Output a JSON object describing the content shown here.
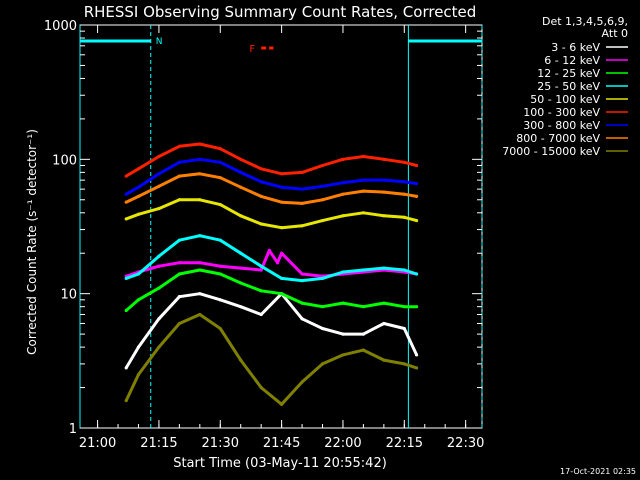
{
  "chart_data": {
    "type": "line",
    "title": "RHESSI Observing Summary Count Rates, Corrected",
    "xlabel": "Start Time (03-May-11 20:55:42)",
    "ylabel": "Corrected Count Rate (s⁻¹ detector⁻¹)",
    "y_scale": "log",
    "ylim": [
      1,
      1000
    ],
    "xlim_minutes": [
      "20:55:42",
      "22:34:00"
    ],
    "x_ticks": [
      "21:00",
      "21:15",
      "21:30",
      "21:45",
      "22:00",
      "22:15",
      "22:30"
    ],
    "y_ticks": [
      "1",
      "10",
      "100",
      "1000"
    ],
    "legend_title": [
      "Det 1,3,4,5,6,9,",
      "Att 0"
    ],
    "legend_position": "right",
    "footer": "17-Oct-2021 02:35",
    "grid": false,
    "flag_labels": {
      "night": "N",
      "flare": "F"
    },
    "night_intervals": [
      [
        "20:55:42",
        "21:13:00"
      ],
      [
        "22:16:00",
        "22:34:00"
      ]
    ],
    "flare_interval": [
      "21:40:00",
      "21:43:00"
    ],
    "series": [
      {
        "name": "3 - 6 keV",
        "color": "#ffffff",
        "x": [
          "21:07",
          "21:10",
          "21:15",
          "21:20",
          "21:25",
          "21:30",
          "21:35",
          "21:40",
          "21:45",
          "21:50",
          "21:55",
          "22:00",
          "22:05",
          "22:10",
          "22:15",
          "22:18"
        ],
        "values": [
          2.8,
          4.0,
          6.5,
          9.5,
          10.0,
          9.0,
          8.0,
          7.0,
          10.0,
          6.5,
          5.5,
          5.0,
          5.0,
          6.0,
          5.5,
          3.5
        ]
      },
      {
        "name": "6 - 12 keV",
        "color": "#ff00ff",
        "x": [
          "21:07",
          "21:10",
          "21:15",
          "21:20",
          "21:25",
          "21:30",
          "21:35",
          "21:40",
          "21:42",
          "21:44",
          "21:45",
          "21:50",
          "21:55",
          "22:00",
          "22:05",
          "22:10",
          "22:15",
          "22:18"
        ],
        "values": [
          13.5,
          14.5,
          16.0,
          17.0,
          17.0,
          16.0,
          15.5,
          15.0,
          21.0,
          17.0,
          20.0,
          14.0,
          13.5,
          14.0,
          14.5,
          15.0,
          14.5,
          14.0
        ]
      },
      {
        "name": "12 - 25 keV",
        "color": "#00ff00",
        "x": [
          "21:07",
          "21:10",
          "21:15",
          "21:20",
          "21:25",
          "21:30",
          "21:35",
          "21:40",
          "21:45",
          "21:50",
          "21:55",
          "22:00",
          "22:05",
          "22:10",
          "22:15",
          "22:18"
        ],
        "values": [
          7.5,
          9.0,
          11.0,
          14.0,
          15.0,
          14.0,
          12.0,
          10.5,
          10.0,
          8.5,
          8.0,
          8.5,
          8.0,
          8.5,
          8.0,
          8.0
        ]
      },
      {
        "name": "25 - 50 keV",
        "color": "#00ffff",
        "x": [
          "21:07",
          "21:10",
          "21:15",
          "21:20",
          "21:25",
          "21:30",
          "21:35",
          "21:40",
          "21:45",
          "21:50",
          "21:55",
          "22:00",
          "22:05",
          "22:10",
          "22:15",
          "22:18"
        ],
        "values": [
          13.0,
          14.0,
          19.0,
          25.0,
          27.0,
          25.0,
          20.0,
          16.0,
          13.0,
          12.5,
          13.0,
          14.5,
          15.0,
          15.5,
          15.0,
          14.0
        ]
      },
      {
        "name": "50 - 100 keV",
        "color": "#e6e600",
        "x": [
          "21:07",
          "21:10",
          "21:15",
          "21:20",
          "21:25",
          "21:30",
          "21:35",
          "21:40",
          "21:45",
          "21:50",
          "21:55",
          "22:00",
          "22:05",
          "22:10",
          "22:15",
          "22:18"
        ],
        "values": [
          36.0,
          39.0,
          43.0,
          50.0,
          50.0,
          46.0,
          38.0,
          33.0,
          31.0,
          32.0,
          35.0,
          38.0,
          40.0,
          38.0,
          37.0,
          35.0
        ]
      },
      {
        "name": "100 - 300 keV",
        "color": "#ff2000",
        "x": [
          "21:07",
          "21:10",
          "21:15",
          "21:20",
          "21:25",
          "21:30",
          "21:35",
          "21:40",
          "21:45",
          "21:50",
          "21:55",
          "22:00",
          "22:05",
          "22:10",
          "22:15",
          "22:18"
        ],
        "values": [
          75.0,
          85.0,
          105.0,
          125.0,
          130.0,
          120.0,
          100.0,
          85.0,
          78.0,
          80.0,
          90.0,
          100.0,
          105.0,
          100.0,
          95.0,
          90.0
        ]
      },
      {
        "name": "300 - 800 keV",
        "color": "#0000ff",
        "x": [
          "21:07",
          "21:10",
          "21:15",
          "21:20",
          "21:25",
          "21:30",
          "21:35",
          "21:40",
          "21:45",
          "21:50",
          "21:55",
          "22:00",
          "22:05",
          "22:10",
          "22:15",
          "22:18"
        ],
        "values": [
          55.0,
          62.0,
          78.0,
          95.0,
          100.0,
          95.0,
          80.0,
          68.0,
          62.0,
          60.0,
          63.0,
          67.0,
          70.0,
          70.0,
          68.0,
          66.0
        ]
      },
      {
        "name": "800 - 7000 keV",
        "color": "#ff8000",
        "x": [
          "21:07",
          "21:10",
          "21:15",
          "21:20",
          "21:25",
          "21:30",
          "21:35",
          "21:40",
          "21:45",
          "21:50",
          "21:55",
          "22:00",
          "22:05",
          "22:10",
          "22:15",
          "22:18"
        ],
        "values": [
          48.0,
          53.0,
          63.0,
          75.0,
          78.0,
          73.0,
          62.0,
          53.0,
          48.0,
          47.0,
          50.0,
          55.0,
          58.0,
          57.0,
          55.0,
          53.0
        ]
      },
      {
        "name": "7000 - 15000 keV",
        "color": "#808000",
        "x": [
          "21:07",
          "21:10",
          "21:15",
          "21:20",
          "21:25",
          "21:30",
          "21:35",
          "21:40",
          "21:45",
          "21:50",
          "21:55",
          "22:00",
          "22:05",
          "22:10",
          "22:15",
          "22:18"
        ],
        "values": [
          1.6,
          2.5,
          4.0,
          6.0,
          7.0,
          5.5,
          3.2,
          2.0,
          1.5,
          2.2,
          3.0,
          3.5,
          3.8,
          3.2,
          3.0,
          2.8
        ]
      }
    ]
  }
}
